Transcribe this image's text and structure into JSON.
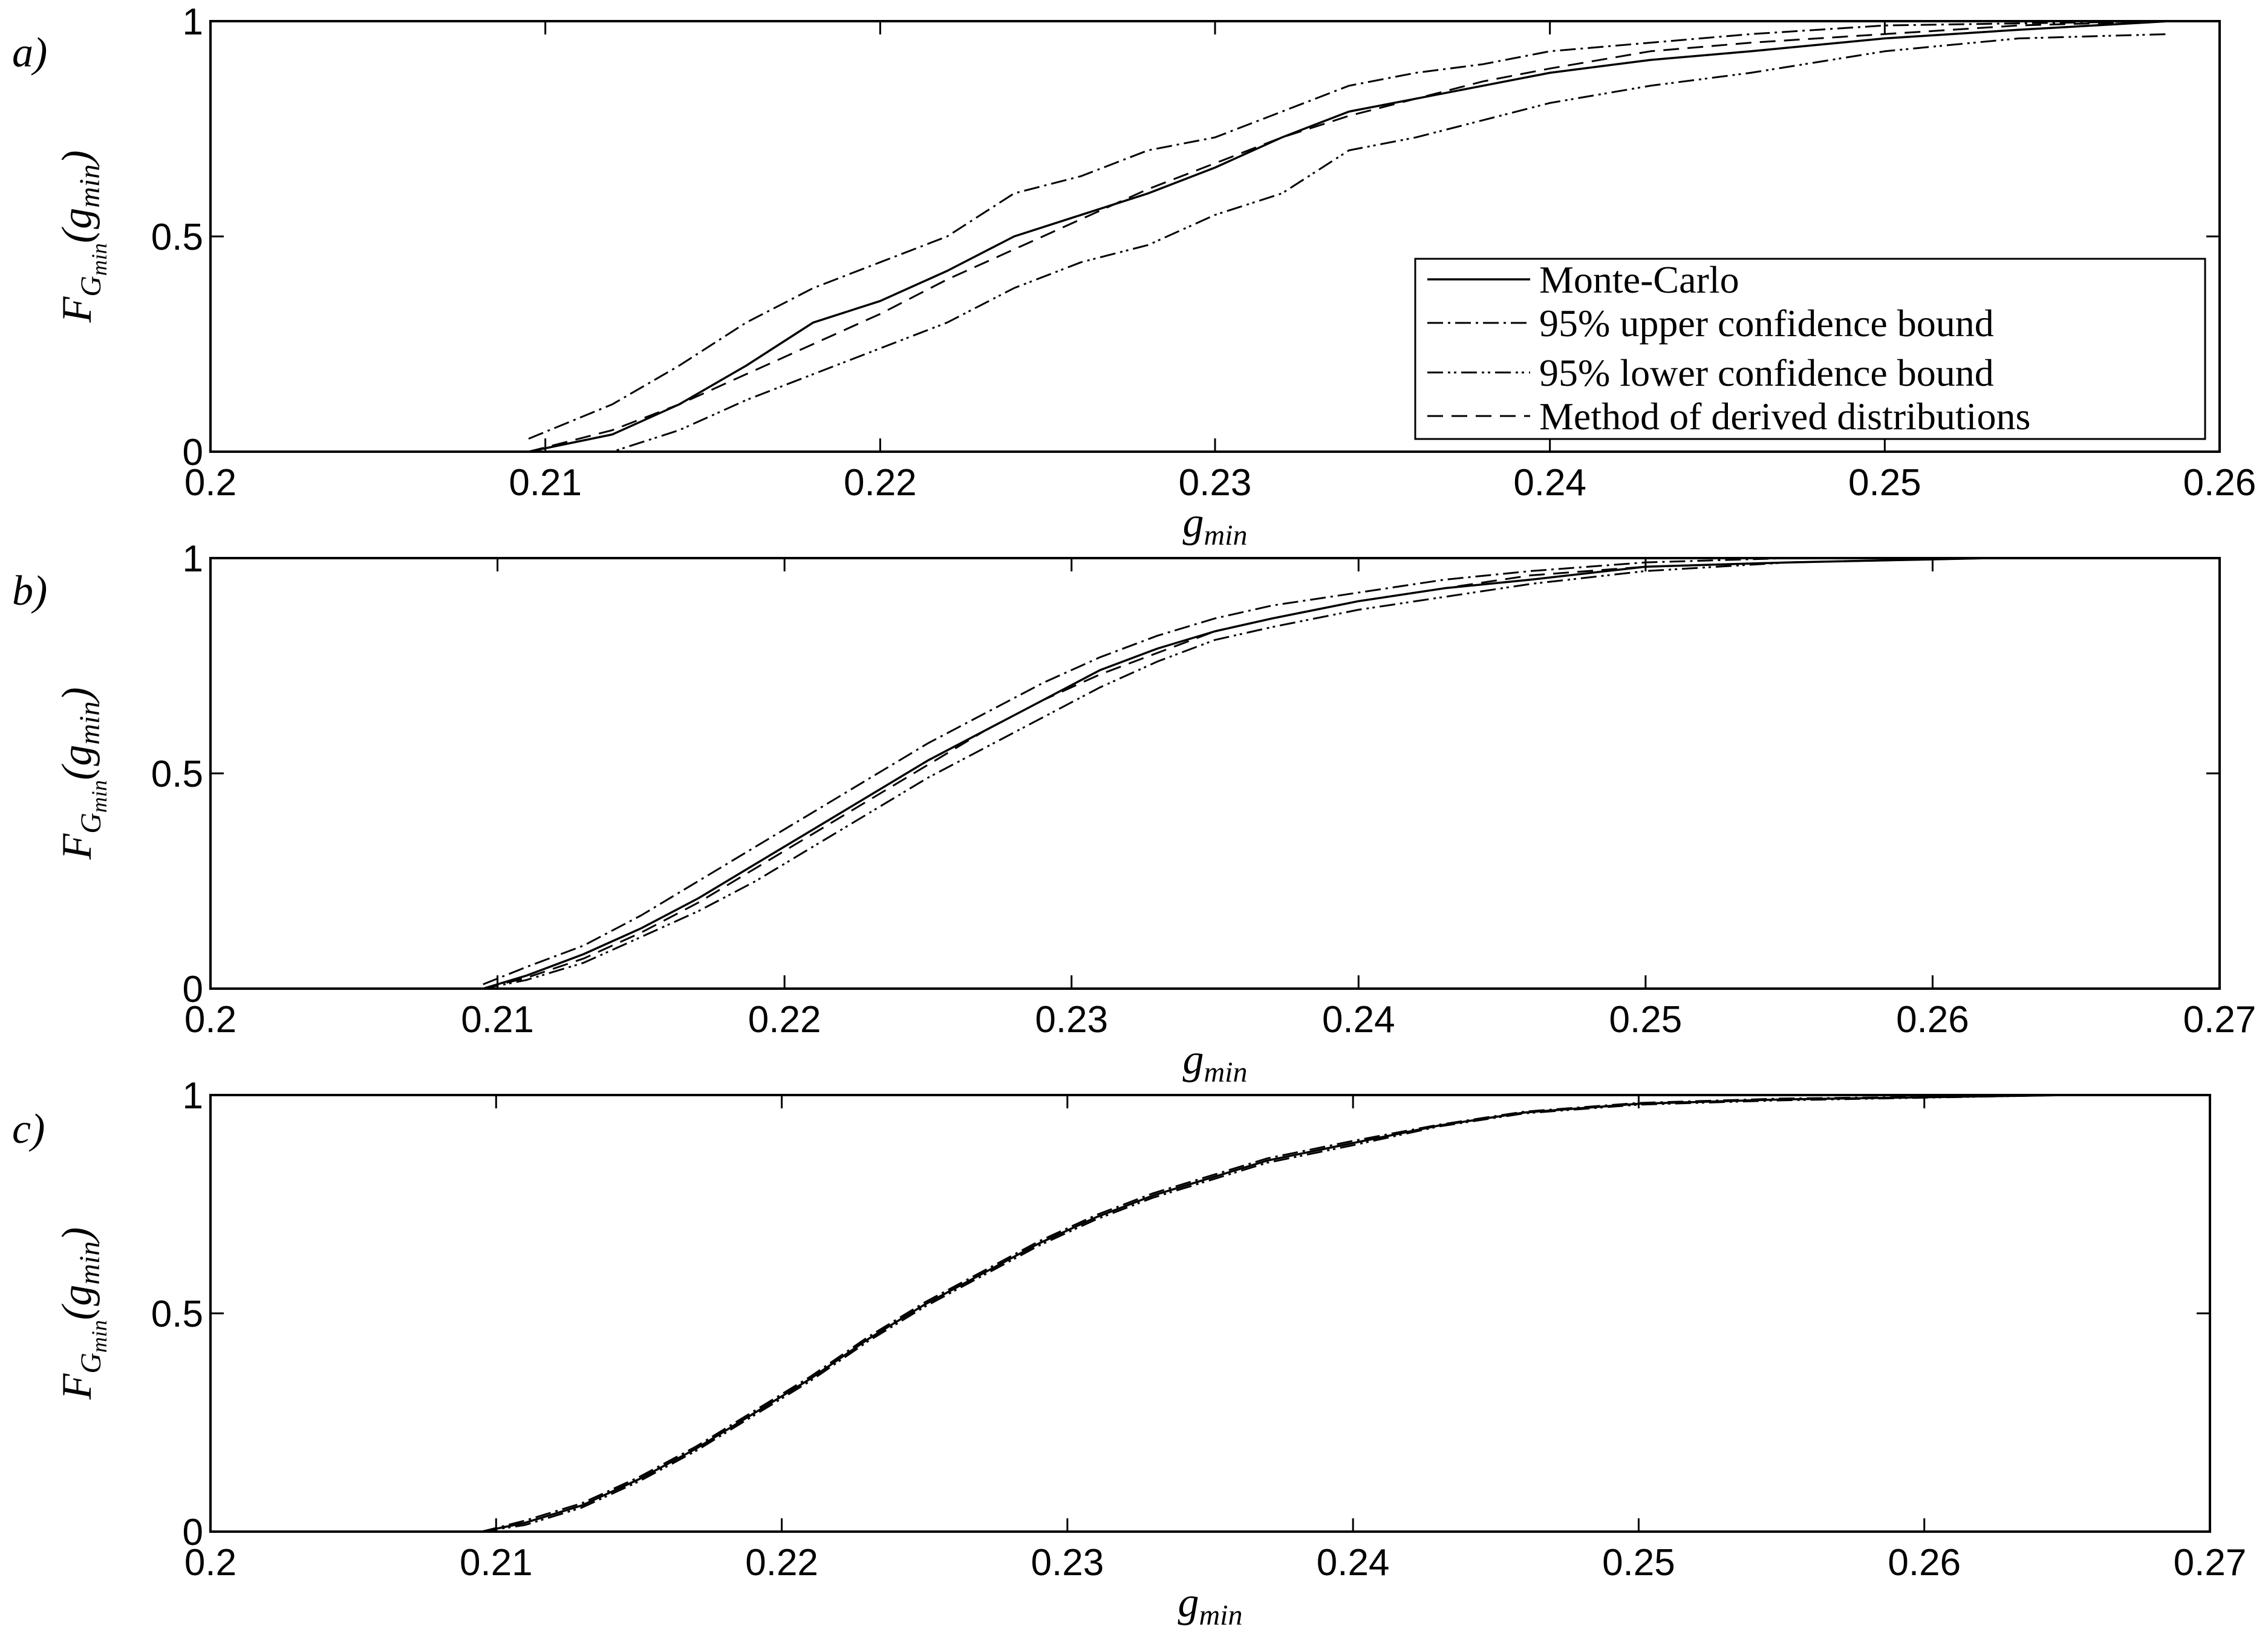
{
  "chart_data": [
    {
      "type": "line",
      "panel_label": "a)",
      "xlabel": "g_min",
      "ylabel": "F_{G_min}(g_min)",
      "xlim": [
        0.2,
        0.26
      ],
      "ylim": [
        0,
        1
      ],
      "xticks": [
        "0.2",
        "0.21",
        "0.22",
        "0.23",
        "0.24",
        "0.25",
        "0.26"
      ],
      "yticks": [
        "0",
        "0.5",
        "1"
      ],
      "grid": false,
      "legend_position": "bottom-right",
      "series": [
        {
          "name": "Monte-Carlo",
          "style": "solid",
          "x": [
            0.2095,
            0.212,
            0.214,
            0.216,
            0.218,
            0.22,
            0.222,
            0.224,
            0.226,
            0.228,
            0.23,
            0.232,
            0.234,
            0.236,
            0.238,
            0.24,
            0.243,
            0.246,
            0.25,
            0.254,
            0.2585
          ],
          "y": [
            0,
            0.04,
            0.11,
            0.2,
            0.3,
            0.35,
            0.42,
            0.5,
            0.55,
            0.6,
            0.66,
            0.73,
            0.79,
            0.82,
            0.85,
            0.88,
            0.91,
            0.93,
            0.96,
            0.98,
            1
          ]
        },
        {
          "name": "95% upper confidence bound",
          "style": "dashdot",
          "x": [
            0.2095,
            0.212,
            0.214,
            0.216,
            0.218,
            0.22,
            0.222,
            0.224,
            0.226,
            0.228,
            0.23,
            0.232,
            0.234,
            0.236,
            0.238,
            0.24,
            0.243,
            0.246,
            0.25,
            0.254,
            0.2585
          ],
          "y": [
            0.03,
            0.11,
            0.2,
            0.3,
            0.38,
            0.44,
            0.5,
            0.6,
            0.64,
            0.7,
            0.73,
            0.79,
            0.85,
            0.88,
            0.9,
            0.93,
            0.95,
            0.97,
            0.99,
            0.995,
            1
          ]
        },
        {
          "name": "95% lower confidence bound",
          "style": "dashdotdot",
          "x": [
            0.2095,
            0.212,
            0.214,
            0.216,
            0.218,
            0.22,
            0.222,
            0.224,
            0.226,
            0.228,
            0.23,
            0.232,
            0.234,
            0.236,
            0.238,
            0.24,
            0.243,
            0.246,
            0.25,
            0.254,
            0.2585
          ],
          "y": [
            0,
            0,
            0.05,
            0.12,
            0.18,
            0.24,
            0.3,
            0.38,
            0.44,
            0.48,
            0.55,
            0.6,
            0.7,
            0.73,
            0.77,
            0.81,
            0.85,
            0.88,
            0.93,
            0.96,
            0.97
          ]
        },
        {
          "name": "Method of derived distributions",
          "style": "dashed",
          "x": [
            0.2095,
            0.212,
            0.214,
            0.216,
            0.218,
            0.22,
            0.222,
            0.224,
            0.226,
            0.228,
            0.23,
            0.232,
            0.234,
            0.236,
            0.238,
            0.24,
            0.243,
            0.246,
            0.25,
            0.254,
            0.2585
          ],
          "y": [
            0,
            0.05,
            0.11,
            0.18,
            0.25,
            0.32,
            0.4,
            0.47,
            0.54,
            0.61,
            0.67,
            0.73,
            0.78,
            0.82,
            0.86,
            0.89,
            0.93,
            0.95,
            0.97,
            0.99,
            1
          ]
        }
      ]
    },
    {
      "type": "line",
      "panel_label": "b)",
      "xlabel": "g_min",
      "ylabel": "F_{G_min}(g_min)",
      "xlim": [
        0.2,
        0.27
      ],
      "ylim": [
        0,
        1
      ],
      "xticks": [
        "0.2",
        "0.21",
        "0.22",
        "0.23",
        "0.24",
        "0.25",
        "0.26",
        "0.27"
      ],
      "yticks": [
        "0",
        "0.5",
        "1"
      ],
      "grid": false,
      "series": [
        {
          "name": "Monte-Carlo",
          "style": "solid",
          "x": [
            0.2095,
            0.211,
            0.213,
            0.215,
            0.217,
            0.219,
            0.221,
            0.223,
            0.225,
            0.227,
            0.229,
            0.231,
            0.233,
            0.235,
            0.237,
            0.24,
            0.243,
            0.246,
            0.25,
            0.255,
            0.262
          ],
          "y": [
            0,
            0.03,
            0.08,
            0.14,
            0.21,
            0.29,
            0.37,
            0.45,
            0.53,
            0.6,
            0.67,
            0.74,
            0.79,
            0.83,
            0.86,
            0.9,
            0.93,
            0.95,
            0.98,
            0.99,
            1
          ]
        },
        {
          "name": "95% upper confidence bound",
          "style": "dashdot",
          "x": [
            0.2095,
            0.211,
            0.213,
            0.215,
            0.217,
            0.219,
            0.221,
            0.223,
            0.225,
            0.227,
            0.229,
            0.231,
            0.233,
            0.235,
            0.237,
            0.24,
            0.243,
            0.246,
            0.25,
            0.255,
            0.262
          ],
          "y": [
            0.01,
            0.05,
            0.1,
            0.17,
            0.25,
            0.33,
            0.41,
            0.49,
            0.57,
            0.64,
            0.71,
            0.77,
            0.82,
            0.86,
            0.89,
            0.92,
            0.95,
            0.97,
            0.99,
            1,
            1
          ]
        },
        {
          "name": "95% lower confidence bound",
          "style": "dashdotdot",
          "x": [
            0.2095,
            0.211,
            0.213,
            0.215,
            0.217,
            0.219,
            0.221,
            0.223,
            0.225,
            0.227,
            0.229,
            0.231,
            0.233,
            0.235,
            0.237,
            0.24,
            0.243,
            0.246,
            0.25,
            0.255,
            0.262
          ],
          "y": [
            0,
            0.02,
            0.06,
            0.12,
            0.18,
            0.25,
            0.33,
            0.41,
            0.49,
            0.56,
            0.63,
            0.7,
            0.76,
            0.81,
            0.84,
            0.88,
            0.91,
            0.94,
            0.97,
            0.99,
            1
          ]
        },
        {
          "name": "Method of derived distributions",
          "style": "dashed",
          "x": [
            0.2095,
            0.211,
            0.213,
            0.215,
            0.217,
            0.219,
            0.221,
            0.223,
            0.225,
            0.227,
            0.229,
            0.231,
            0.233,
            0.235,
            0.237,
            0.24,
            0.243,
            0.246,
            0.25,
            0.255,
            0.262
          ],
          "y": [
            0,
            0.025,
            0.07,
            0.13,
            0.2,
            0.28,
            0.36,
            0.44,
            0.52,
            0.6,
            0.67,
            0.73,
            0.78,
            0.83,
            0.86,
            0.9,
            0.93,
            0.96,
            0.98,
            0.99,
            1
          ]
        }
      ]
    },
    {
      "type": "line",
      "panel_label": "c)",
      "xlabel": "g_min",
      "ylabel": "F_{G_min}(g_min)",
      "xlim": [
        0.2,
        0.27
      ],
      "ylim": [
        0,
        1
      ],
      "xticks": [
        "0.2",
        "0.21",
        "0.22",
        "0.23",
        "0.24",
        "0.25",
        "0.26",
        "0.27"
      ],
      "yticks": [
        "0",
        "0.5",
        "1"
      ],
      "grid": false,
      "series": [
        {
          "name": "Monte-Carlo",
          "style": "solid",
          "x": [
            0.2095,
            0.211,
            0.213,
            0.215,
            0.217,
            0.219,
            0.221,
            0.223,
            0.225,
            0.227,
            0.229,
            0.231,
            0.233,
            0.235,
            0.237,
            0.24,
            0.243,
            0.246,
            0.25,
            0.255,
            0.265
          ],
          "y": [
            0,
            0.02,
            0.06,
            0.12,
            0.19,
            0.27,
            0.35,
            0.44,
            0.52,
            0.59,
            0.66,
            0.72,
            0.77,
            0.81,
            0.85,
            0.89,
            0.93,
            0.96,
            0.98,
            0.99,
            1
          ]
        },
        {
          "name": "95% upper confidence bound",
          "style": "dashdot",
          "x": [
            0.2095,
            0.211,
            0.213,
            0.215,
            0.217,
            0.219,
            0.221,
            0.223,
            0.225,
            0.227,
            0.229,
            0.231,
            0.233,
            0.235,
            0.237,
            0.24,
            0.243,
            0.246,
            0.25,
            0.255,
            0.265
          ],
          "y": [
            0,
            0.025,
            0.065,
            0.125,
            0.195,
            0.275,
            0.355,
            0.445,
            0.525,
            0.595,
            0.665,
            0.725,
            0.775,
            0.815,
            0.855,
            0.895,
            0.932,
            0.962,
            0.982,
            0.992,
            1
          ]
        },
        {
          "name": "95% lower confidence bound",
          "style": "dashdotdot",
          "x": [
            0.2095,
            0.211,
            0.213,
            0.215,
            0.217,
            0.219,
            0.221,
            0.223,
            0.225,
            0.227,
            0.229,
            0.231,
            0.233,
            0.235,
            0.237,
            0.24,
            0.243,
            0.246,
            0.25,
            0.255,
            0.265
          ],
          "y": [
            0,
            0.015,
            0.055,
            0.115,
            0.185,
            0.265,
            0.345,
            0.435,
            0.515,
            0.585,
            0.655,
            0.715,
            0.765,
            0.805,
            0.845,
            0.885,
            0.928,
            0.958,
            0.978,
            0.988,
            1
          ]
        },
        {
          "name": "Method of derived distributions",
          "style": "dashed",
          "x": [
            0.2095,
            0.211,
            0.213,
            0.215,
            0.217,
            0.219,
            0.221,
            0.223,
            0.225,
            0.227,
            0.229,
            0.231,
            0.233,
            0.235,
            0.237,
            0.24,
            0.243,
            0.246,
            0.25,
            0.255,
            0.265
          ],
          "y": [
            0,
            0.02,
            0.06,
            0.12,
            0.19,
            0.27,
            0.35,
            0.44,
            0.52,
            0.59,
            0.66,
            0.72,
            0.77,
            0.81,
            0.85,
            0.89,
            0.93,
            0.96,
            0.98,
            0.99,
            1
          ]
        }
      ]
    }
  ],
  "legend": {
    "entries": [
      "Monte-Carlo",
      "95% upper confidence bound",
      "95% lower confidence bound",
      "Method of derived distributions"
    ]
  },
  "labels": {
    "xlabel_main": "g",
    "xlabel_sub": "min",
    "ylabel_F": "F",
    "ylabel_G": "G",
    "ylabel_sub": "min",
    "ylabel_paren_open": "(g",
    "ylabel_paren_close": ")"
  }
}
